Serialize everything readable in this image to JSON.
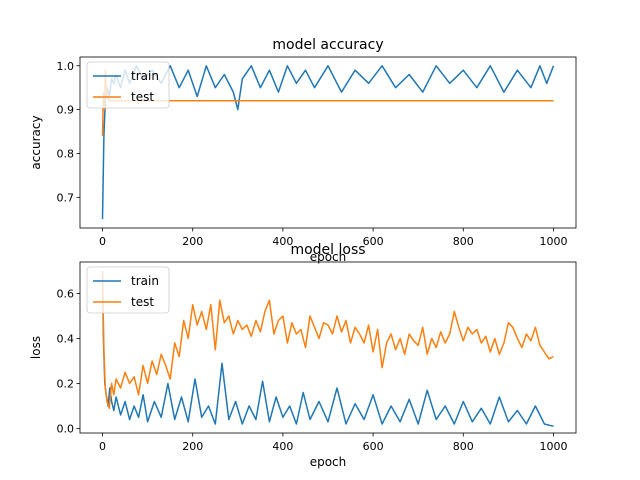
{
  "chart_data": [
    {
      "type": "line",
      "title": "model accuracy",
      "xlabel": "epoch",
      "ylabel": "accuracy",
      "xlim": [
        -50,
        1050
      ],
      "ylim": [
        0.63,
        1.02
      ],
      "xticks": [
        0,
        200,
        400,
        600,
        800,
        1000
      ],
      "yticks": [
        0.7,
        0.8,
        0.9,
        1.0
      ],
      "xtick_labels": [
        "0",
        "200",
        "400",
        "600",
        "800",
        "1000"
      ],
      "ytick_labels": [
        "0.7",
        "0.8",
        "0.9",
        "1.0"
      ],
      "legend": "upper left",
      "series": [
        {
          "name": "train",
          "color": "#1f77b4",
          "x": [
            0,
            3,
            6,
            10,
            15,
            20,
            25,
            30,
            40,
            50,
            60,
            75,
            90,
            110,
            130,
            150,
            170,
            190,
            210,
            230,
            250,
            270,
            290,
            300,
            310,
            330,
            350,
            370,
            390,
            410,
            430,
            450,
            470,
            500,
            530,
            560,
            590,
            620,
            650,
            680,
            710,
            740,
            770,
            800,
            830,
            860,
            890,
            920,
            950,
            970,
            985,
            1000
          ],
          "y": [
            0.65,
            0.84,
            0.92,
            0.95,
            0.93,
            0.97,
            0.96,
            0.98,
            0.95,
            0.99,
            0.96,
            1.0,
            0.97,
            0.99,
            0.96,
            1.0,
            0.95,
            0.99,
            0.93,
            1.0,
            0.95,
            0.98,
            0.94,
            0.9,
            0.97,
            1.0,
            0.95,
            0.99,
            0.94,
            1.0,
            0.96,
            0.99,
            0.95,
            1.0,
            0.94,
            0.99,
            0.96,
            1.0,
            0.95,
            0.98,
            0.94,
            1.0,
            0.96,
            0.99,
            0.95,
            1.0,
            0.94,
            0.99,
            0.95,
            1.0,
            0.96,
            1.0
          ]
        },
        {
          "name": "test",
          "color": "#ff7f0e",
          "x": [
            0,
            2,
            4,
            6,
            8,
            10,
            15,
            20,
            1000
          ],
          "y": [
            0.84,
            0.94,
            0.9,
            0.99,
            0.95,
            0.93,
            0.92,
            0.92,
            0.92
          ]
        }
      ]
    },
    {
      "type": "line",
      "title": "model loss",
      "xlabel": "epoch",
      "ylabel": "loss",
      "xlim": [
        -50,
        1050
      ],
      "ylim": [
        -0.02,
        0.74
      ],
      "xticks": [
        0,
        200,
        400,
        600,
        800,
        1000
      ],
      "yticks": [
        0.0,
        0.2,
        0.4,
        0.6
      ],
      "xtick_labels": [
        "0",
        "200",
        "400",
        "600",
        "800",
        "1000"
      ],
      "ytick_labels": [
        "0.0",
        "0.2",
        "0.4",
        "0.6"
      ],
      "legend": "upper left",
      "series": [
        {
          "name": "train",
          "color": "#1f77b4",
          "x": [
            0,
            2,
            5,
            8,
            12,
            16,
            20,
            25,
            30,
            40,
            50,
            60,
            70,
            80,
            90,
            100,
            115,
            130,
            145,
            160,
            175,
            190,
            205,
            220,
            235,
            250,
            265,
            280,
            295,
            310,
            325,
            340,
            355,
            370,
            385,
            400,
            415,
            430,
            445,
            460,
            480,
            500,
            520,
            540,
            560,
            580,
            600,
            620,
            640,
            660,
            680,
            700,
            720,
            740,
            760,
            780,
            800,
            820,
            840,
            860,
            880,
            900,
            920,
            940,
            960,
            980,
            1000
          ],
          "y": [
            0.7,
            0.4,
            0.2,
            0.15,
            0.1,
            0.18,
            0.12,
            0.08,
            0.14,
            0.06,
            0.12,
            0.04,
            0.1,
            0.05,
            0.15,
            0.03,
            0.12,
            0.05,
            0.2,
            0.04,
            0.14,
            0.03,
            0.22,
            0.05,
            0.1,
            0.02,
            0.29,
            0.04,
            0.12,
            0.02,
            0.1,
            0.04,
            0.21,
            0.03,
            0.14,
            0.05,
            0.1,
            0.02,
            0.16,
            0.04,
            0.12,
            0.03,
            0.18,
            0.02,
            0.11,
            0.04,
            0.15,
            0.02,
            0.1,
            0.03,
            0.13,
            0.02,
            0.17,
            0.04,
            0.1,
            0.02,
            0.12,
            0.03,
            0.09,
            0.02,
            0.14,
            0.03,
            0.08,
            0.02,
            0.1,
            0.02,
            0.01
          ]
        },
        {
          "name": "test",
          "color": "#ff7f0e",
          "x": [
            0,
            3,
            6,
            10,
            15,
            20,
            25,
            30,
            40,
            50,
            60,
            70,
            80,
            90,
            100,
            110,
            120,
            130,
            140,
            150,
            160,
            170,
            180,
            190,
            200,
            210,
            220,
            230,
            240,
            250,
            260,
            270,
            280,
            290,
            300,
            310,
            320,
            330,
            340,
            350,
            360,
            370,
            380,
            390,
            400,
            410,
            420,
            430,
            440,
            450,
            460,
            470,
            480,
            490,
            500,
            510,
            520,
            530,
            540,
            550,
            560,
            570,
            580,
            590,
            600,
            610,
            620,
            630,
            640,
            650,
            660,
            670,
            680,
            690,
            700,
            710,
            720,
            730,
            740,
            750,
            760,
            770,
            780,
            790,
            800,
            810,
            820,
            830,
            840,
            850,
            860,
            870,
            880,
            890,
            900,
            910,
            920,
            930,
            940,
            950,
            960,
            970,
            980,
            990,
            1000
          ],
          "y": [
            0.7,
            0.35,
            0.18,
            0.12,
            0.09,
            0.2,
            0.15,
            0.22,
            0.18,
            0.25,
            0.2,
            0.23,
            0.15,
            0.28,
            0.2,
            0.3,
            0.24,
            0.33,
            0.28,
            0.22,
            0.38,
            0.32,
            0.48,
            0.4,
            0.55,
            0.46,
            0.52,
            0.44,
            0.55,
            0.35,
            0.57,
            0.47,
            0.5,
            0.42,
            0.48,
            0.44,
            0.46,
            0.41,
            0.48,
            0.43,
            0.52,
            0.57,
            0.42,
            0.48,
            0.5,
            0.38,
            0.47,
            0.42,
            0.44,
            0.36,
            0.5,
            0.45,
            0.4,
            0.47,
            0.46,
            0.42,
            0.5,
            0.43,
            0.48,
            0.38,
            0.45,
            0.42,
            0.38,
            0.46,
            0.34,
            0.44,
            0.27,
            0.38,
            0.42,
            0.35,
            0.4,
            0.33,
            0.42,
            0.39,
            0.37,
            0.45,
            0.33,
            0.4,
            0.36,
            0.43,
            0.38,
            0.42,
            0.52,
            0.45,
            0.39,
            0.45,
            0.42,
            0.44,
            0.38,
            0.41,
            0.34,
            0.4,
            0.33,
            0.38,
            0.47,
            0.45,
            0.4,
            0.36,
            0.42,
            0.39,
            0.45,
            0.37,
            0.34,
            0.31,
            0.32
          ]
        }
      ]
    }
  ]
}
